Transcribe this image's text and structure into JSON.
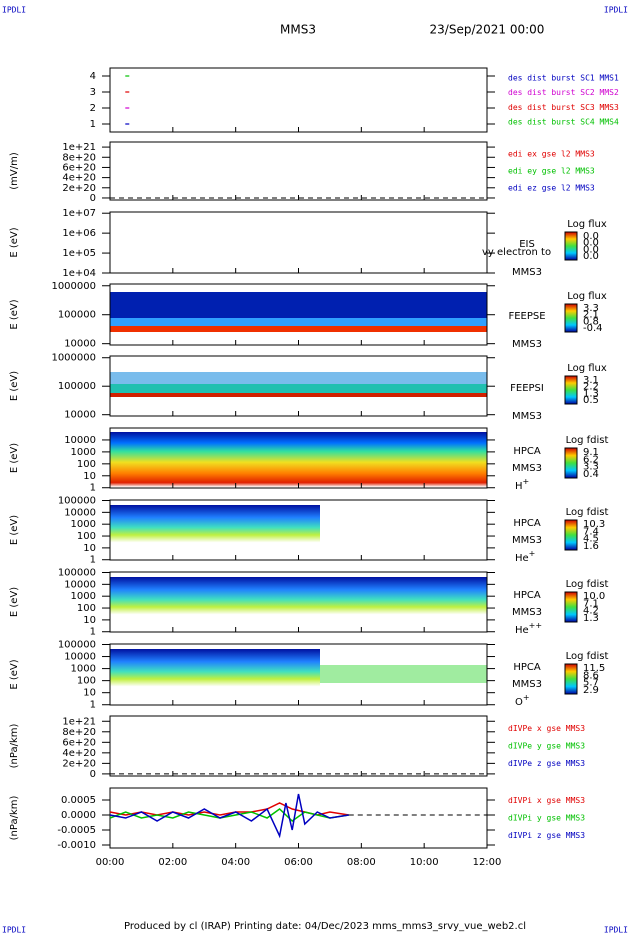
{
  "header": {
    "left": "IPDLI",
    "title": "MMS3",
    "date": "23/Sep/2021 00:00",
    "right": "IPDLI"
  },
  "footer": {
    "left": "IPDLI",
    "text": "Produced by cl (IRAP)   Printing date: 04/Dec/2023   mms_mms3_srvy_vue_web2.cl",
    "right": "IPDLI"
  },
  "xaxis": {
    "xlim": [
      0,
      12
    ],
    "xticks": [
      {
        "value": 0,
        "label": "00:00"
      },
      {
        "value": 2,
        "label": "02:00"
      },
      {
        "value": 4,
        "label": "04:00"
      },
      {
        "value": 6,
        "label": "06:00"
      },
      {
        "value": 8,
        "label": "08:00"
      },
      {
        "value": 10,
        "label": "10:00"
      },
      {
        "value": 12,
        "label": "12:00"
      }
    ]
  },
  "panels": [
    {
      "ylim": [
        0.5,
        4.5
      ],
      "yticks": [
        1,
        2,
        3,
        4
      ],
      "log": false,
      "series": [
        {
          "name": "des dist burst SC1 MMS1",
          "color": "#0000c0",
          "x": [
            0.55
          ],
          "values": [
            1
          ]
        },
        {
          "name": "des dist burst SC2 MMS2",
          "color": "#d000d0",
          "x": [
            0.55
          ],
          "values": [
            2
          ]
        },
        {
          "name": "des dist burst SC3 MMS3",
          "color": "#e00000",
          "x": [
            0.55
          ],
          "values": [
            3
          ]
        },
        {
          "name": "des dist burst SC4 MMS4",
          "color": "#00c000",
          "x": [
            0.55
          ],
          "values": [
            4
          ]
        }
      ]
    },
    {
      "ylabel": "(mV/m)",
      "ylim": [
        -4e+19,
        1.1e+21
      ],
      "log": false,
      "yticks": [
        0,
        {
          "value": 2e+20,
          "label": "2e+20"
        },
        {
          "value": 4e+20,
          "label": "4e+20"
        },
        {
          "value": 6e+20,
          "label": "6e+20"
        },
        {
          "value": 8e+20,
          "label": "8e+20"
        },
        {
          "value": 1e+21,
          "label": "1e+21"
        }
      ],
      "series": [
        {
          "name": "edi ex gse l2 MMS3",
          "color": "#e00000"
        },
        {
          "name": "edi ey gse l2 MMS3",
          "color": "#00c000"
        },
        {
          "name": "edi ez gse l2 MMS3",
          "color": "#0000c0"
        }
      ]
    },
    {
      "ylabel": "E (eV)",
      "ylim": [
        10000,
        11500000
      ],
      "log": true,
      "yticks": [
        {
          "value": 10000,
          "label": "1e+04"
        },
        {
          "value": 100000,
          "label": "1e+05"
        },
        {
          "value": 1000000,
          "label": "1e+06"
        },
        {
          "value": 10000000,
          "label": "1e+07"
        }
      ],
      "side": [
        "EIS",
        "MMS3"
      ],
      "note": "vy electron to",
      "colorbar": {
        "title": "Log flux",
        "tick_labels": [
          "0.0",
          "0.0",
          "0.0",
          "0.0"
        ]
      }
    },
    {
      "ylabel": "E (eV)",
      "ylim": [
        9000,
        1150000
      ],
      "log": true,
      "yticks": [
        10000,
        100000,
        1000000
      ],
      "side": [
        "FEEPSE",
        "MMS3"
      ],
      "colorbar": {
        "title": "Log flux",
        "tick_labels": [
          "3.3",
          "2.1",
          "0.8",
          "-0.4"
        ]
      }
    },
    {
      "ylabel": "E (eV)",
      "ylim": [
        9000,
        1150000
      ],
      "log": true,
      "yticks": [
        10000,
        100000,
        1000000
      ],
      "side": [
        "FEEPSI",
        "MMS3"
      ],
      "colorbar": {
        "title": "Log flux",
        "tick_labels": [
          "3.1",
          "2.2",
          "1.3",
          "0.5"
        ]
      }
    },
    {
      "ylabel": "E (eV)",
      "ylim": [
        0.95,
        100000
      ],
      "log": true,
      "yticks": [
        1,
        10,
        100,
        1000,
        10000
      ],
      "side": [
        "HPCA",
        "MMS3"
      ],
      "species": {
        "base": "H",
        "sup": "+"
      },
      "colorbar": {
        "title": "Log fdist",
        "tick_labels": [
          "9.1",
          "6.2",
          "3.3",
          "0.4"
        ]
      }
    },
    {
      "ylabel": "E (eV)",
      "ylim": [
        0.95,
        110000
      ],
      "log": true,
      "yticks": [
        1,
        10,
        100,
        1000,
        10000,
        100000
      ],
      "side": [
        "HPCA",
        "MMS3"
      ],
      "species": {
        "base": "He",
        "sup": "+"
      },
      "colorbar": {
        "title": "Log fdist",
        "tick_labels": [
          "10.3",
          "7.4",
          "4.5",
          "1.6"
        ]
      }
    },
    {
      "ylabel": "E (eV)",
      "ylim": [
        0.95,
        110000
      ],
      "log": true,
      "yticks": [
        1,
        10,
        100,
        1000,
        10000,
        100000
      ],
      "side": [
        "HPCA",
        "MMS3"
      ],
      "species": {
        "base": "He",
        "sup": "++"
      },
      "colorbar": {
        "title": "Log fdist",
        "tick_labels": [
          "10.0",
          "7.1",
          "4.2",
          "1.3"
        ]
      }
    },
    {
      "ylabel": "E (eV)",
      "ylim": [
        0.95,
        110000
      ],
      "log": true,
      "yticks": [
        1,
        10,
        100,
        1000,
        10000,
        100000
      ],
      "side": [
        "HPCA",
        "MMS3"
      ],
      "species": {
        "base": "O",
        "sup": "+"
      },
      "colorbar": {
        "title": "Log fdist",
        "tick_labels": [
          "11.5",
          "8.6",
          "5.7",
          "2.9"
        ]
      }
    },
    {
      "ylabel": "(nPa/km)",
      "ylim": [
        -4e+19,
        1.1e+21
      ],
      "log": false,
      "yticks": [
        0,
        {
          "value": 2e+20,
          "label": "2e+20"
        },
        {
          "value": 4e+20,
          "label": "4e+20"
        },
        {
          "value": 6e+20,
          "label": "6e+20"
        },
        {
          "value": 8e+20,
          "label": "8e+20"
        },
        {
          "value": 1e+21,
          "label": "1e+21"
        }
      ],
      "series": [
        {
          "name": "dIVPe x gse MMS3",
          "color": "#e00000"
        },
        {
          "name": "dIVPe y gse MMS3",
          "color": "#00c000"
        },
        {
          "name": "dIVPe z gse MMS3",
          "color": "#0000c0"
        }
      ]
    },
    {
      "ylabel": "(nPa/km)",
      "ylim": [
        -0.0011,
        0.0009
      ],
      "log": false,
      "yticks": [
        {
          "value": -0.001,
          "label": "-0.0010"
        },
        -0.0005,
        {
          "value": 0,
          "label": "0.0000"
        },
        0.0005
      ],
      "series": [
        {
          "name": "dIVPi x gse MMS3",
          "color": "#e00000",
          "x": [
            0,
            0.5,
            1,
            1.5,
            2,
            2.5,
            3,
            3.5,
            4,
            4.5,
            5,
            5.4,
            5.8,
            6.2,
            6.6,
            7,
            7.6
          ],
          "values": [
            0.0001,
            0.0,
            0.0001,
            0.0,
            0.0001,
            0.0,
            0.0001,
            0.0,
            0.0001,
            0.0001,
            0.0002,
            0.0004,
            0.0002,
            0.0001,
            0.0,
            0.0001,
            0.0
          ]
        },
        {
          "name": "dIVPi y gse MMS3",
          "color": "#00c000",
          "x": [
            0,
            0.5,
            1,
            1.5,
            2,
            2.5,
            3,
            3.5,
            4,
            4.5,
            5,
            5.4,
            5.8,
            6.2,
            6.6,
            7,
            7.6
          ],
          "values": [
            -0.0001,
            0.0001,
            -0.0001,
            0.0,
            -0.0001,
            0.0001,
            0.0,
            -0.0001,
            0.0,
            0.0001,
            -0.0001,
            0.0002,
            -0.0002,
            0.0001,
            0.0,
            -0.0001,
            0.0
          ]
        },
        {
          "name": "dIVPi z gse MMS3",
          "color": "#0000c0",
          "x": [
            0,
            0.5,
            1,
            1.5,
            2,
            2.5,
            3,
            3.5,
            4,
            4.5,
            5,
            5.4,
            5.6,
            5.8,
            6,
            6.2,
            6.6,
            7,
            7.6
          ],
          "values": [
            0.0,
            -0.0001,
            0.0001,
            -0.0002,
            0.0001,
            -0.0001,
            0.0002,
            -0.0001,
            0.0001,
            -0.0002,
            0.0002,
            -0.0007,
            0.0004,
            -0.0005,
            0.0007,
            -0.0003,
            0.0001,
            -0.0001,
            0.0
          ]
        }
      ]
    }
  ]
}
